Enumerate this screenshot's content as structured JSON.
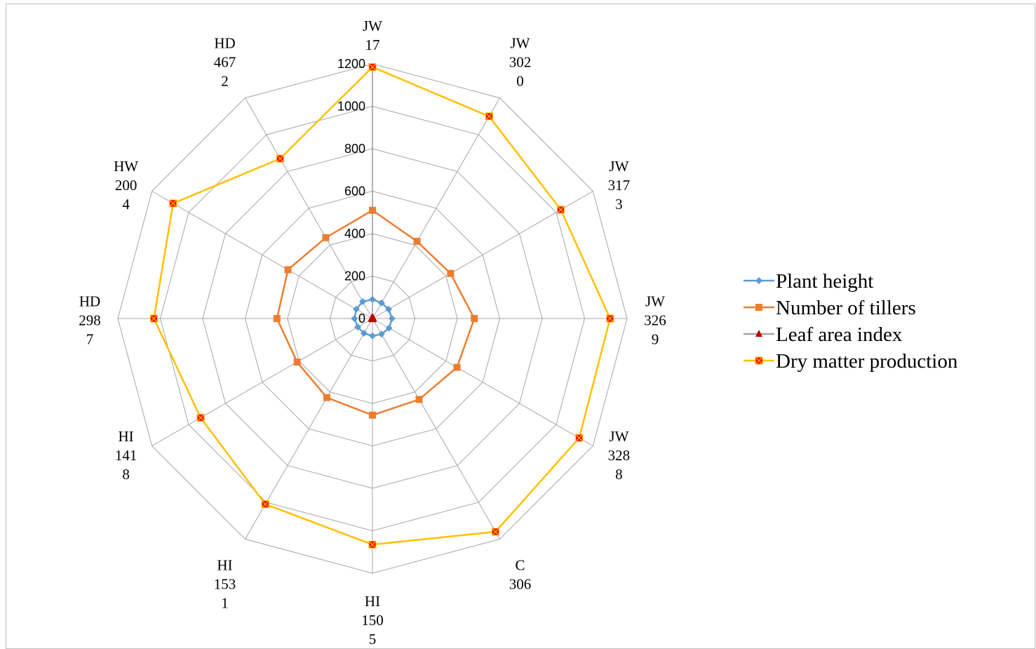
{
  "chart_data": {
    "type": "radar",
    "categories": [
      [
        "JW",
        "17"
      ],
      [
        "JW",
        "302",
        "0"
      ],
      [
        "JW",
        "317",
        "3"
      ],
      [
        "JW",
        "326",
        "9"
      ],
      [
        "JW",
        "328",
        "8"
      ],
      [
        "C",
        "306"
      ],
      [
        "HI",
        "150",
        "5"
      ],
      [
        "HI",
        "153",
        "1"
      ],
      [
        "HI",
        "141",
        "8"
      ],
      [
        "HD",
        "298",
        "7"
      ],
      [
        "HW",
        "200",
        "4"
      ],
      [
        "HD",
        "467",
        "2"
      ]
    ],
    "radial_ticks": [
      0,
      200,
      400,
      600,
      800,
      1000,
      1200
    ],
    "rlim": [
      0,
      1200
    ],
    "grid": true,
    "legend_position": "right",
    "series": [
      {
        "name": "Plant height",
        "color": "#5b9bd5",
        "marker": "diamond",
        "values": [
          90,
          85,
          88,
          92,
          90,
          85,
          82,
          80,
          80,
          85,
          88,
          92
        ]
      },
      {
        "name": "Number of tillers",
        "color": "#ed7d31",
        "marker": "square",
        "values": [
          510,
          420,
          425,
          480,
          460,
          440,
          455,
          430,
          410,
          450,
          460,
          440
        ]
      },
      {
        "name": "Leaf area index",
        "color": "#a5a5a5",
        "marker": "triangle",
        "values": [
          4,
          4,
          4,
          4,
          4,
          4,
          4,
          4,
          4,
          4,
          4,
          4
        ]
      },
      {
        "name": "Dry matter production",
        "color": "#ffc000",
        "marker": "x-square",
        "values": [
          1185,
          1100,
          1025,
          1120,
          1125,
          1160,
          1065,
          1010,
          935,
          1030,
          1085,
          870
        ]
      }
    ]
  }
}
